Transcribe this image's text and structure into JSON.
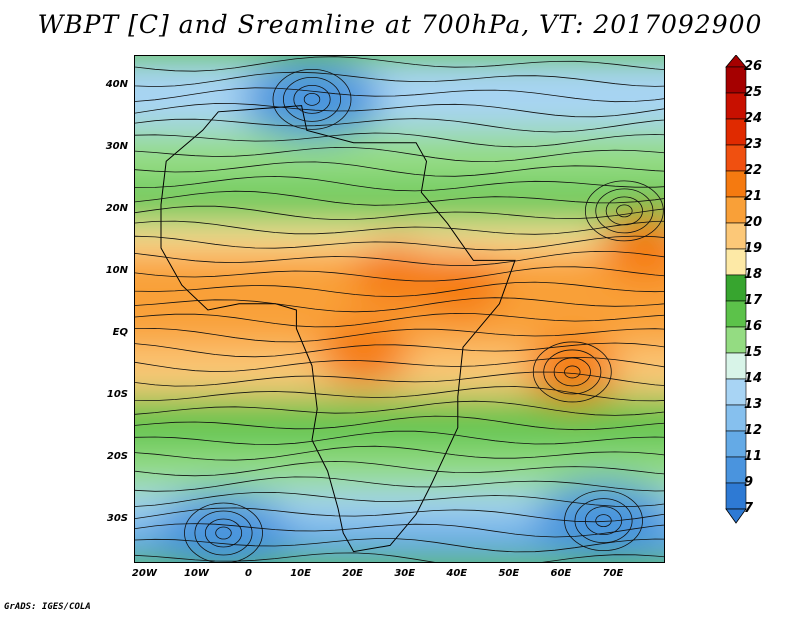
{
  "title": "WBPT [C] and Sreamline at 700hPa, VT: 2017092900",
  "credit": "GrADS: IGES/COLA",
  "lat_labels": [
    "40N",
    "30N",
    "20N",
    "10N",
    "EQ",
    "10S",
    "20S",
    "30S"
  ],
  "lon_labels": [
    "20W",
    "10W",
    "0",
    "10E",
    "20E",
    "30E",
    "40E",
    "50E",
    "60E",
    "70E"
  ],
  "colorbar": {
    "labels": [
      "26",
      "25",
      "24",
      "23",
      "22",
      "21",
      "20",
      "19",
      "18",
      "17",
      "16",
      "15",
      "14",
      "13",
      "12",
      "11",
      "9",
      "7"
    ],
    "colors": [
      "#a50000",
      "#c81000",
      "#e02a00",
      "#f05010",
      "#f57a10",
      "#f9a038",
      "#fcc878",
      "#fde9a6",
      "#37a52f",
      "#5cc24a",
      "#94dc82",
      "#d8f4e8",
      "#a8d4f4",
      "#86c0ee",
      "#64aae6",
      "#4a94de",
      "#2e7ad4"
    ]
  },
  "map_extent": {
    "lon": [
      -22,
      80
    ],
    "lat": [
      -37,
      45
    ]
  },
  "fields": {
    "hot": [
      [
        28,
        10
      ],
      [
        40,
        8
      ],
      [
        62,
        -6
      ],
      [
        76,
        14
      ],
      [
        22,
        -3
      ]
    ],
    "cold": [
      [
        -5,
        -32
      ],
      [
        68,
        -30
      ],
      [
        12,
        38
      ]
    ],
    "vortices": [
      [
        -5,
        -32
      ],
      [
        62,
        -6
      ],
      [
        12,
        38
      ],
      [
        68,
        -30
      ],
      [
        72,
        20
      ]
    ]
  },
  "land_outline": [
    [
      -17,
      21
    ],
    [
      -16,
      28
    ],
    [
      -9,
      33
    ],
    [
      -6,
      36
    ],
    [
      10,
      37
    ],
    [
      11,
      33
    ],
    [
      20,
      31
    ],
    [
      32,
      31
    ],
    [
      34,
      28
    ],
    [
      33,
      23
    ],
    [
      38,
      18
    ],
    [
      43,
      12
    ],
    [
      51,
      12
    ],
    [
      48,
      5
    ],
    [
      41,
      -2
    ],
    [
      40,
      -10
    ],
    [
      40,
      -15
    ],
    [
      35,
      -24
    ],
    [
      32,
      -29
    ],
    [
      27,
      -34
    ],
    [
      20,
      -35
    ],
    [
      18,
      -32
    ],
    [
      17,
      -28
    ],
    [
      15,
      -22
    ],
    [
      12,
      -17
    ],
    [
      13,
      -12
    ],
    [
      12,
      -5
    ],
    [
      9,
      1
    ],
    [
      9,
      4
    ],
    [
      5,
      5
    ],
    [
      -2,
      5
    ],
    [
      -8,
      4
    ],
    [
      -13,
      8
    ],
    [
      -17,
      14
    ],
    [
      -17,
      21
    ]
  ]
}
